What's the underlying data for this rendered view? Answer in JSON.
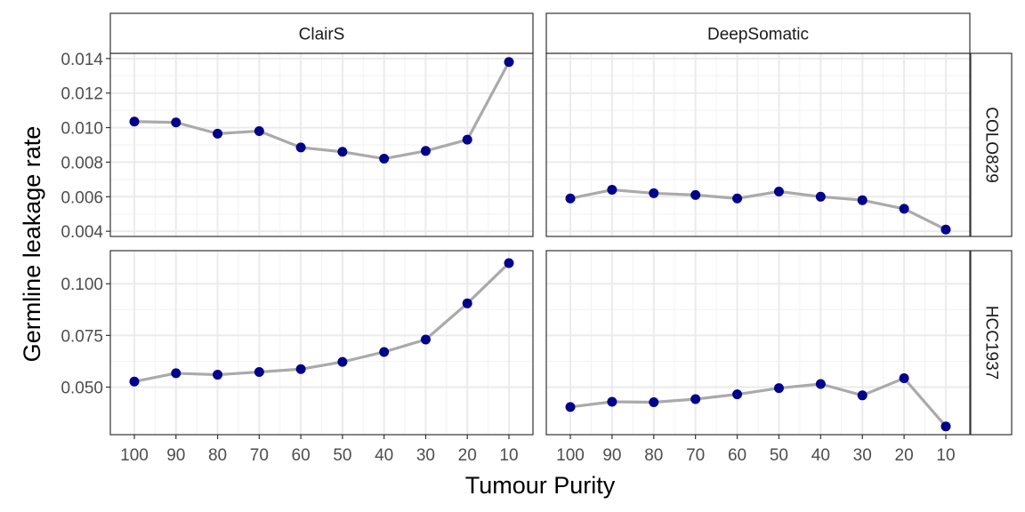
{
  "chart_data": {
    "type": "line",
    "facet_columns": [
      "ClairS",
      "DeepSomatic"
    ],
    "facet_rows": [
      "COLO829",
      "HCC1937"
    ],
    "x": [
      100,
      90,
      80,
      70,
      60,
      50,
      40,
      30,
      20,
      10
    ],
    "x_reversed": true,
    "xlabel": "Tumour Purity",
    "ylabel": "Germline leakage rate",
    "grid": true,
    "line_color": "#aaaaaa",
    "point_color": "#00008b",
    "rows": [
      {
        "name": "COLO829",
        "ylim": [
          0.0037,
          0.0143
        ],
        "yticks": [
          0.004,
          0.006,
          0.008,
          0.01,
          0.012,
          0.014
        ],
        "ytick_labels": [
          "0.004",
          "0.006",
          "0.008",
          "0.010",
          "0.012",
          "0.014"
        ]
      },
      {
        "name": "HCC1937",
        "ylim": [
          0.027,
          0.116
        ],
        "yticks": [
          0.05,
          0.075,
          0.1
        ],
        "ytick_labels": [
          "0.050",
          "0.075",
          "0.100"
        ]
      }
    ],
    "panels": [
      {
        "column": "ClairS",
        "row": "COLO829",
        "values": [
          0.01035,
          0.0103,
          0.00965,
          0.0098,
          0.00885,
          0.0086,
          0.0082,
          0.00865,
          0.0093,
          0.0138
        ]
      },
      {
        "column": "DeepSomatic",
        "row": "COLO829",
        "values": [
          0.0059,
          0.0064,
          0.0062,
          0.0061,
          0.0059,
          0.0063,
          0.006,
          0.0058,
          0.0053,
          0.0041
        ]
      },
      {
        "column": "ClairS",
        "row": "HCC1937",
        "values": [
          0.0527,
          0.0567,
          0.056,
          0.0573,
          0.0587,
          0.0622,
          0.067,
          0.073,
          0.0905,
          0.11
        ]
      },
      {
        "column": "DeepSomatic",
        "row": "HCC1937",
        "values": [
          0.0404,
          0.0429,
          0.0427,
          0.0442,
          0.0465,
          0.0495,
          0.0515,
          0.046,
          0.0543,
          0.031
        ]
      }
    ]
  }
}
